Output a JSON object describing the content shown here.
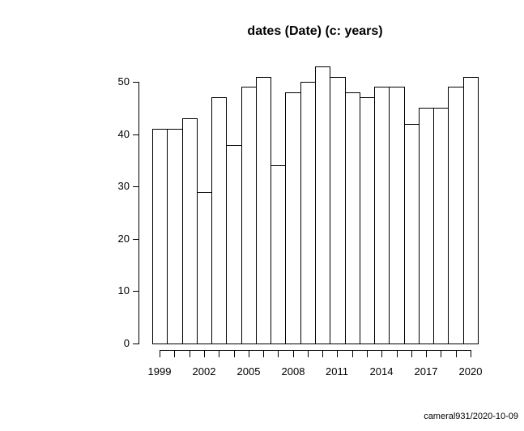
{
  "chart_data": {
    "type": "bar",
    "title": "dates (Date) (c: years)",
    "categories": [
      "1999",
      "2000",
      "2001",
      "2002",
      "2003",
      "2004",
      "2005",
      "2006",
      "2007",
      "2008",
      "2009",
      "2010",
      "2011",
      "2012",
      "2013",
      "2014",
      "2015",
      "2016",
      "2017",
      "2018",
      "2019",
      "2020"
    ],
    "values": [
      41,
      41,
      43,
      29,
      47,
      38,
      49,
      51,
      34,
      48,
      50,
      53,
      51,
      48,
      47,
      49,
      49,
      42,
      45,
      45,
      49,
      51
    ],
    "xlabel": "",
    "ylabel": "",
    "ylim": [
      0,
      53
    ],
    "y_ticks": [
      0,
      10,
      20,
      30,
      40,
      50
    ],
    "x_tick_labels": [
      "1999",
      "2002",
      "2005",
      "2008",
      "2011",
      "2014",
      "2017",
      "2020"
    ],
    "x_label_every": 3,
    "grid": "off",
    "legend": "none",
    "bar_fill": "#ffffff",
    "bar_stroke": "#000000"
  },
  "footer": {
    "text": "cameral931/2020-10-09"
  }
}
